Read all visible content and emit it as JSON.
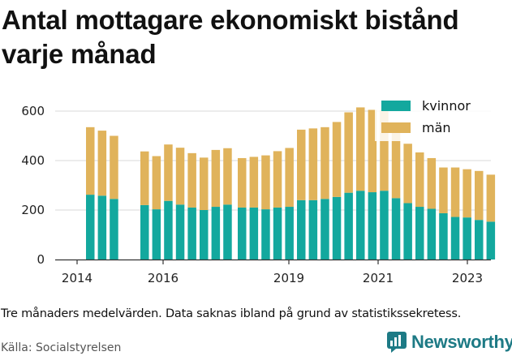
{
  "title": "Antal mottagare ekonomiskt bistånd varje månad",
  "note": "Tre månaders medelvärden. Data saknas ibland på grund av statistikssekretess.",
  "source": "Källa: Socialstyrelsen",
  "brand": {
    "name": "Newsworthy",
    "icon": "newsworthy-logo-icon",
    "color": "#1d7a85"
  },
  "chart_data": {
    "type": "bar",
    "stacked": true,
    "title": "Antal mottagare ekonomiskt bistånd varje månad",
    "xlabel": "",
    "ylabel": "",
    "ylim": [
      0,
      620
    ],
    "yticks": [
      0,
      200,
      400,
      600
    ],
    "xticks": [
      "2014",
      "2016",
      "2019",
      "2021",
      "2023"
    ],
    "grid": "horizontal",
    "legend_position": "top-right",
    "series": [
      {
        "name": "kvinnor",
        "color": "#13a89e",
        "values": [
          262,
          258,
          245,
          220,
          203,
          237,
          222,
          210,
          200,
          213,
          222,
          210,
          210,
          203,
          210,
          213,
          240,
          240,
          245,
          253,
          270,
          278,
          272,
          278,
          248,
          228,
          213,
          205,
          187,
          172,
          170,
          160,
          153
        ]
      },
      {
        "name": "män",
        "color": "#e0b35b",
        "values": [
          273,
          263,
          255,
          217,
          215,
          228,
          230,
          220,
          212,
          230,
          228,
          200,
          205,
          218,
          228,
          238,
          285,
          290,
          290,
          303,
          325,
          337,
          333,
          327,
          267,
          240,
          220,
          205,
          185,
          200,
          195,
          198,
          190
        ]
      }
    ],
    "x": [
      "2014",
      "2014",
      "2014",
      "2015",
      "2016",
      "2016",
      "2016",
      "2016",
      "2017",
      "2017",
      "2017",
      "2018",
      "2018",
      "2018",
      "2018",
      "2019",
      "2019",
      "2019",
      "2019",
      "2020",
      "2020",
      "2020",
      "2020",
      "2021",
      "2021",
      "2021",
      "2021",
      "2022",
      "2022",
      "2022",
      "2022",
      "2023",
      "2023"
    ]
  }
}
